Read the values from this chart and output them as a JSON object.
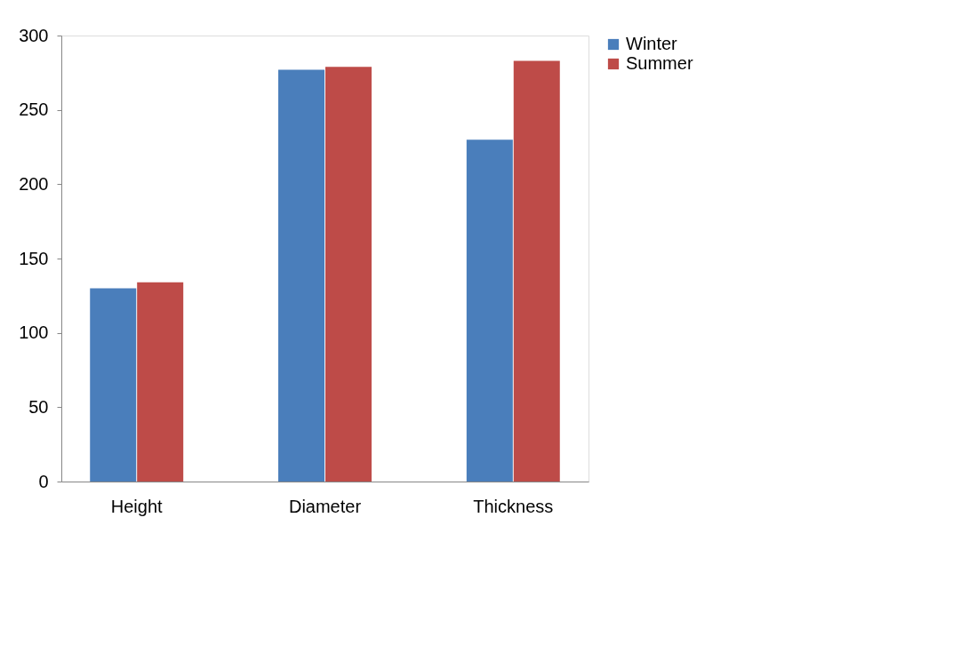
{
  "chart_data": {
    "type": "bar",
    "categories": [
      "Height",
      "Diameter",
      "Thickness"
    ],
    "series": [
      {
        "name": "Winter",
        "color": "#4a7ebb",
        "values": [
          130,
          277,
          230
        ]
      },
      {
        "name": "Summer",
        "color": "#be4b48",
        "values": [
          134,
          279,
          283
        ]
      }
    ],
    "ylim": [
      0,
      300
    ],
    "yticks": [
      0,
      50,
      100,
      150,
      200,
      250,
      300
    ],
    "grid": false,
    "legend": "right"
  }
}
